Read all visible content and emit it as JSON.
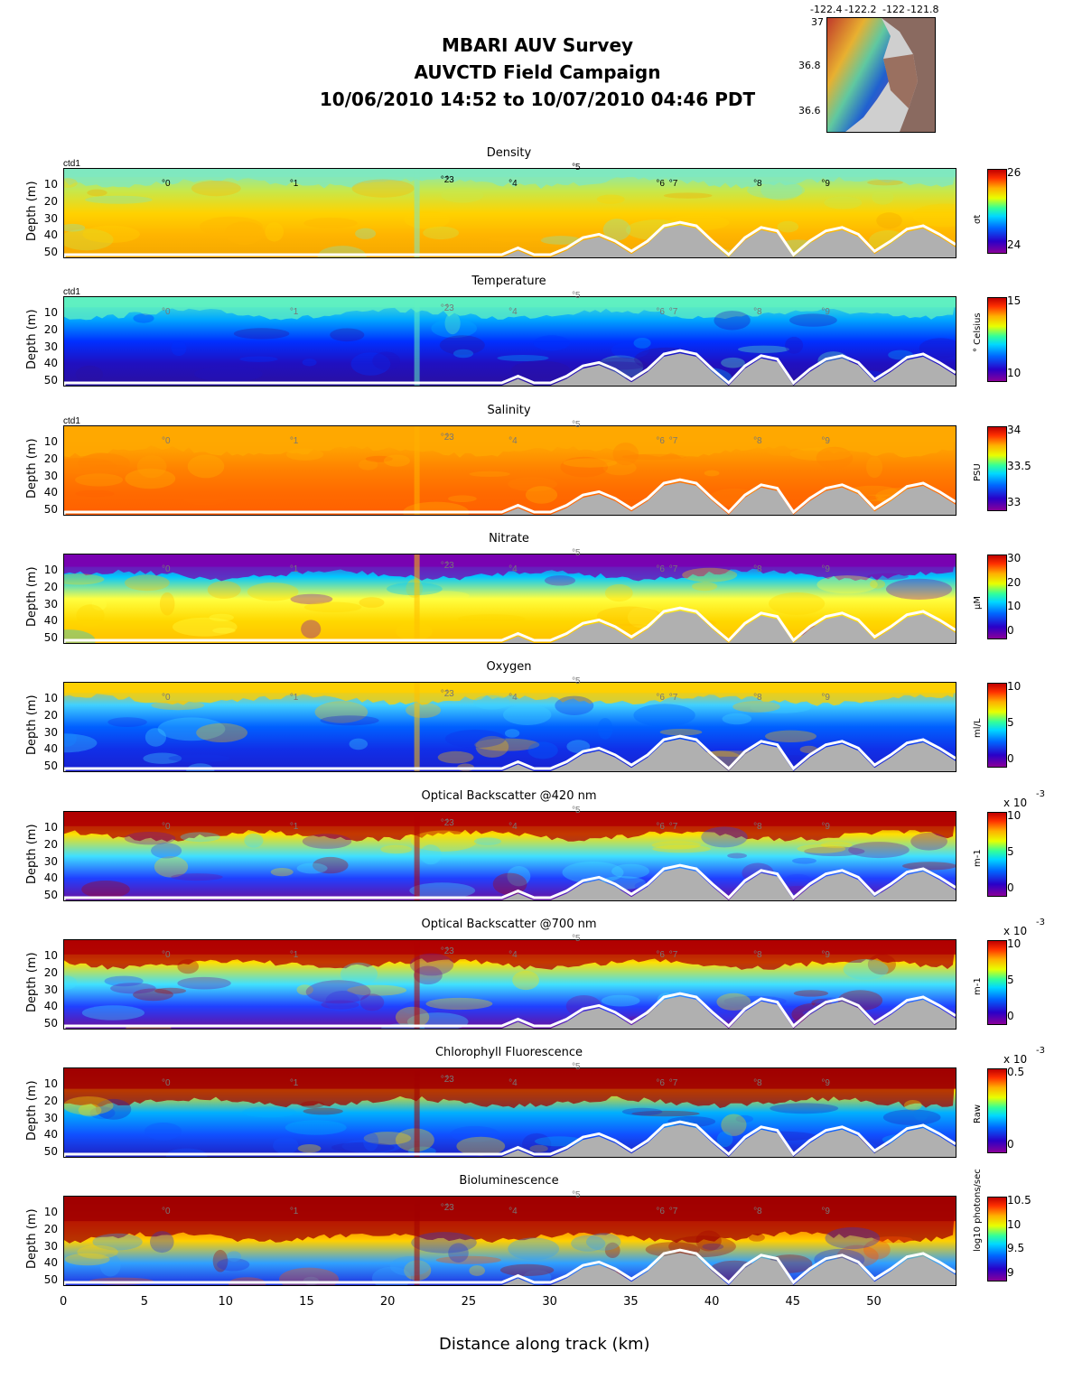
{
  "header": {
    "line1": "MBARI AUV Survey",
    "line2": "AUVCTD Field Campaign",
    "line3": "10/06/2010 14:52  to 10/07/2010 04:46 PDT"
  },
  "map": {
    "lon_ticks": [
      "-122.4",
      "-122.2",
      "-122",
      "-121.8"
    ],
    "lat_ticks": [
      "37",
      "36.8",
      "36.6"
    ]
  },
  "chart_data": {
    "type": "heatmap",
    "xlabel": "Distance along track (km)",
    "xlim": [
      0,
      55
    ],
    "x_ticks": [
      "0",
      "5",
      "10",
      "15",
      "20",
      "25",
      "30",
      "35",
      "40",
      "45",
      "50"
    ],
    "ylabel": "Depth (m)",
    "ylim": [
      0,
      52
    ],
    "y_ticks": [
      "10",
      "20",
      "30",
      "40",
      "50"
    ],
    "ctd_label": "ctd1",
    "waypoints": [
      {
        "label": "0",
        "x": 6.3
      },
      {
        "label": "1",
        "x": 14.2
      },
      {
        "label": "2",
        "x": 23.5
      },
      {
        "label": "3",
        "x": 23.8
      },
      {
        "label": "4",
        "x": 27.7
      },
      {
        "label": "5",
        "x": 31.6
      },
      {
        "label": "6",
        "x": 36.8
      },
      {
        "label": "7",
        "x": 37.6
      },
      {
        "label": "8",
        "x": 42.8
      },
      {
        "label": "9",
        "x": 47.0
      }
    ],
    "bottom_profile_km": [
      0,
      1,
      2,
      3,
      4,
      5,
      6,
      7,
      8,
      9,
      10,
      11,
      12,
      13,
      14,
      15,
      16,
      17,
      18,
      19,
      20,
      21,
      22,
      23,
      24,
      25,
      26,
      27,
      28,
      29,
      30,
      31,
      32,
      33,
      34,
      35,
      36,
      37,
      38,
      39,
      40,
      41,
      42,
      43,
      44,
      45,
      46,
      47,
      48,
      49,
      50,
      51,
      52,
      53,
      54,
      55
    ],
    "bottom_profile_depth": [
      52,
      52,
      52,
      52,
      52,
      52,
      52,
      52,
      52,
      52,
      52,
      52,
      52,
      52,
      52,
      52,
      52,
      52,
      52,
      52,
      52,
      52,
      52,
      52,
      52,
      52,
      52,
      52,
      48,
      52,
      52,
      48,
      42,
      40,
      44,
      50,
      44,
      35,
      33,
      35,
      44,
      52,
      42,
      36,
      38,
      52,
      44,
      38,
      36,
      40,
      50,
      44,
      37,
      35,
      40,
      46
    ],
    "panels": [
      {
        "title": "Density",
        "cb_ticks": [
          "26",
          "24"
        ],
        "cb_label": "σt",
        "cb_exp": "",
        "stops": [
          "#f4a700",
          "#ffb400",
          "#ffd200",
          "#c8e84a",
          "#7fe8c0"
        ],
        "surface": "#7fe8c0",
        "deep": "#f4a000",
        "thermo": 8
      },
      {
        "title": "Temperature",
        "cb_ticks": [
          "15",
          "10"
        ],
        "cb_label": "° Celsius",
        "cb_exp": "",
        "stops": [
          "#2a10a0",
          "#2010c0",
          "#0030ff",
          "#00a8ff",
          "#60f0c0"
        ],
        "surface": "#60f0c0",
        "deep": "#2810a8",
        "thermo": 10
      },
      {
        "title": "Salinity",
        "cb_ticks": [
          "34",
          "33.5",
          "33"
        ],
        "cb_label": "PSU",
        "cb_exp": "",
        "stops": [
          "#ff6000",
          "#ff6a00",
          "#ff8000",
          "#ffa000",
          "#ffb000"
        ],
        "surface": "#ffa800",
        "deep": "#ff6000",
        "thermo": 15
      },
      {
        "title": "Nitrate",
        "cb_ticks": [
          "30",
          "20",
          "10",
          "0"
        ],
        "cb_label": "μM",
        "cb_exp": "",
        "stops": [
          "#ffc000",
          "#ffd800",
          "#ffff40",
          "#00c8ff",
          "#7a00b0"
        ],
        "surface": "#7a00b0",
        "deep": "#ffc000",
        "thermo": 12
      },
      {
        "title": "Oxygen",
        "cb_ticks": [
          "10",
          "5",
          "0"
        ],
        "cb_label": "ml/L",
        "cb_exp": "",
        "stops": [
          "#1a20d0",
          "#1030e8",
          "#0060ff",
          "#40d0ff",
          "#ffc000"
        ],
        "surface": "#ffd000",
        "deep": "#1a20d0",
        "thermo": 10
      },
      {
        "title": "Optical Backscatter @420 nm",
        "cb_ticks": [
          "10",
          "5",
          "0"
        ],
        "cb_label": "m-1",
        "cb_exp": "x 10",
        "stops": [
          "#6a10a0",
          "#2040ff",
          "#40e0ff",
          "#ffe000",
          "#b00000"
        ],
        "surface": "#b00000",
        "deep": "#6a10a0",
        "thermo": 14
      },
      {
        "title": "Optical Backscatter @700 nm",
        "cb_ticks": [
          "10",
          "5",
          "0"
        ],
        "cb_label": "m-1",
        "cb_exp": "x 10",
        "stops": [
          "#6a10a0",
          "#2040ff",
          "#40e0ff",
          "#ffe000",
          "#b00000"
        ],
        "surface": "#b00000",
        "deep": "#6a10a0",
        "thermo": 14
      },
      {
        "title": "Chlorophyll Fluorescence",
        "cb_ticks": [
          "0.5",
          "0"
        ],
        "cb_label": "Raw",
        "cb_exp": "x 10",
        "stops": [
          "#2020c0",
          "#1050ff",
          "#00b0ff",
          "#ffe000",
          "#a00000"
        ],
        "surface": "#a00000",
        "deep": "#2020c0",
        "thermo": 20
      },
      {
        "title": "Bioluminescence",
        "cb_ticks": [
          "10.5",
          "10",
          "9.5",
          "9"
        ],
        "cb_label": "log10 photons/sec",
        "cb_exp": "",
        "stops": [
          "#2030e0",
          "#30a0ff",
          "#ffd000",
          "#ff5000",
          "#a00000"
        ],
        "surface": "#a00000",
        "deep": "#2030e0",
        "thermo": 24
      }
    ],
    "colorbar_exp_sup": "-3"
  }
}
